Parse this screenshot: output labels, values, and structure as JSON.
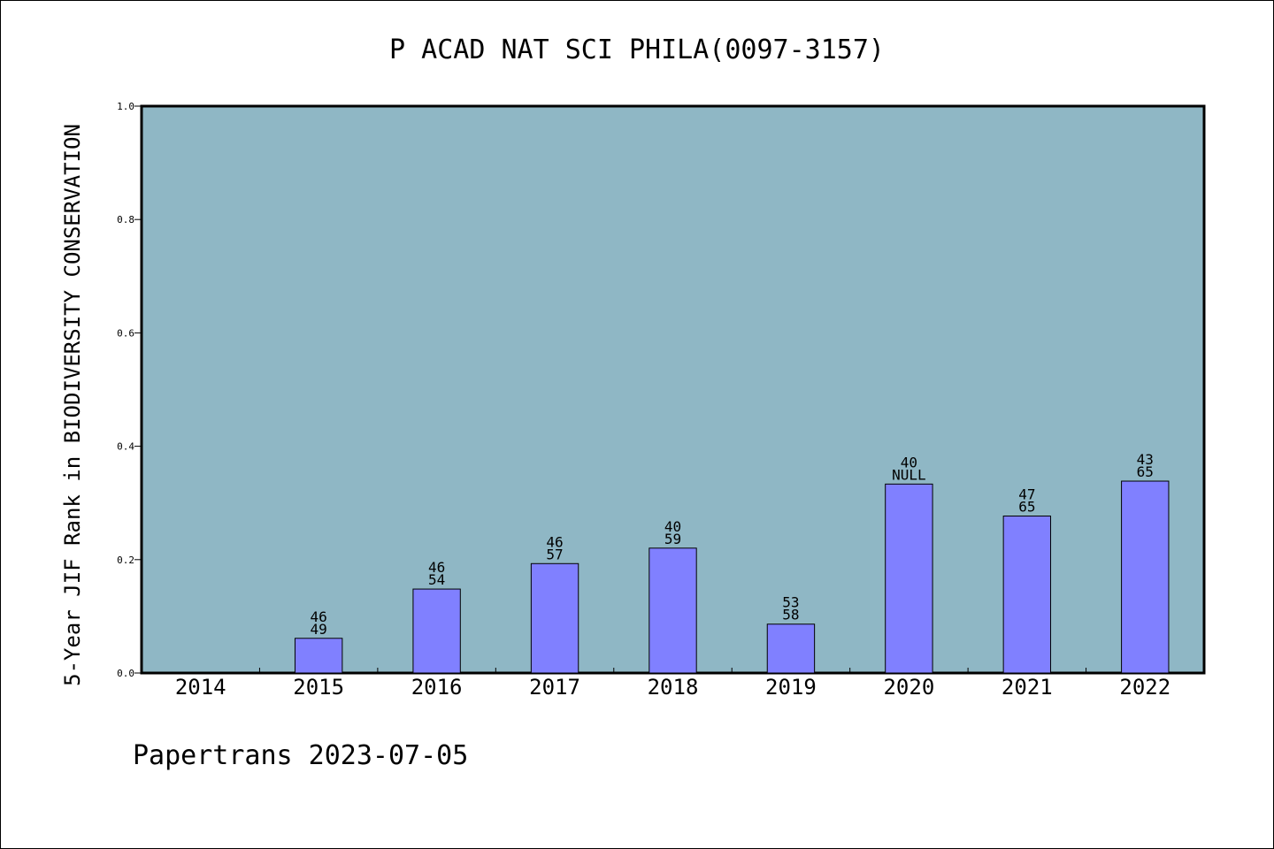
{
  "chart_data": {
    "type": "bar",
    "title": "P ACAD NAT SCI PHILA(0097-3157)",
    "ylabel": "5-Year JIF Rank in BIODIVERSITY CONSERVATION",
    "xlabel": "",
    "ylim": [
      0,
      1.0
    ],
    "yticks": [
      "0.0",
      "0.2",
      "0.4",
      "0.6",
      "0.8",
      "1.0"
    ],
    "categories": [
      "2014",
      "2015",
      "2016",
      "2017",
      "2018",
      "2019",
      "2020",
      "2021",
      "2022"
    ],
    "values": [
      null,
      0.0612,
      0.1481,
      0.193,
      0.2203,
      0.0862,
      0.3333,
      0.2769,
      0.3385
    ],
    "label_top": [
      "",
      "46",
      "46",
      "46",
      "40",
      "53",
      "40",
      "47",
      "43"
    ],
    "label_bottom": [
      "",
      "49",
      "54",
      "57",
      "59",
      "58",
      "NULL",
      "65",
      "65"
    ],
    "grid": false,
    "colors": {
      "plot_background": "#8FB7C5",
      "bar_fill": "#8080FF",
      "bar_stroke": "#000000"
    }
  },
  "footer": "Papertrans 2023-07-05"
}
